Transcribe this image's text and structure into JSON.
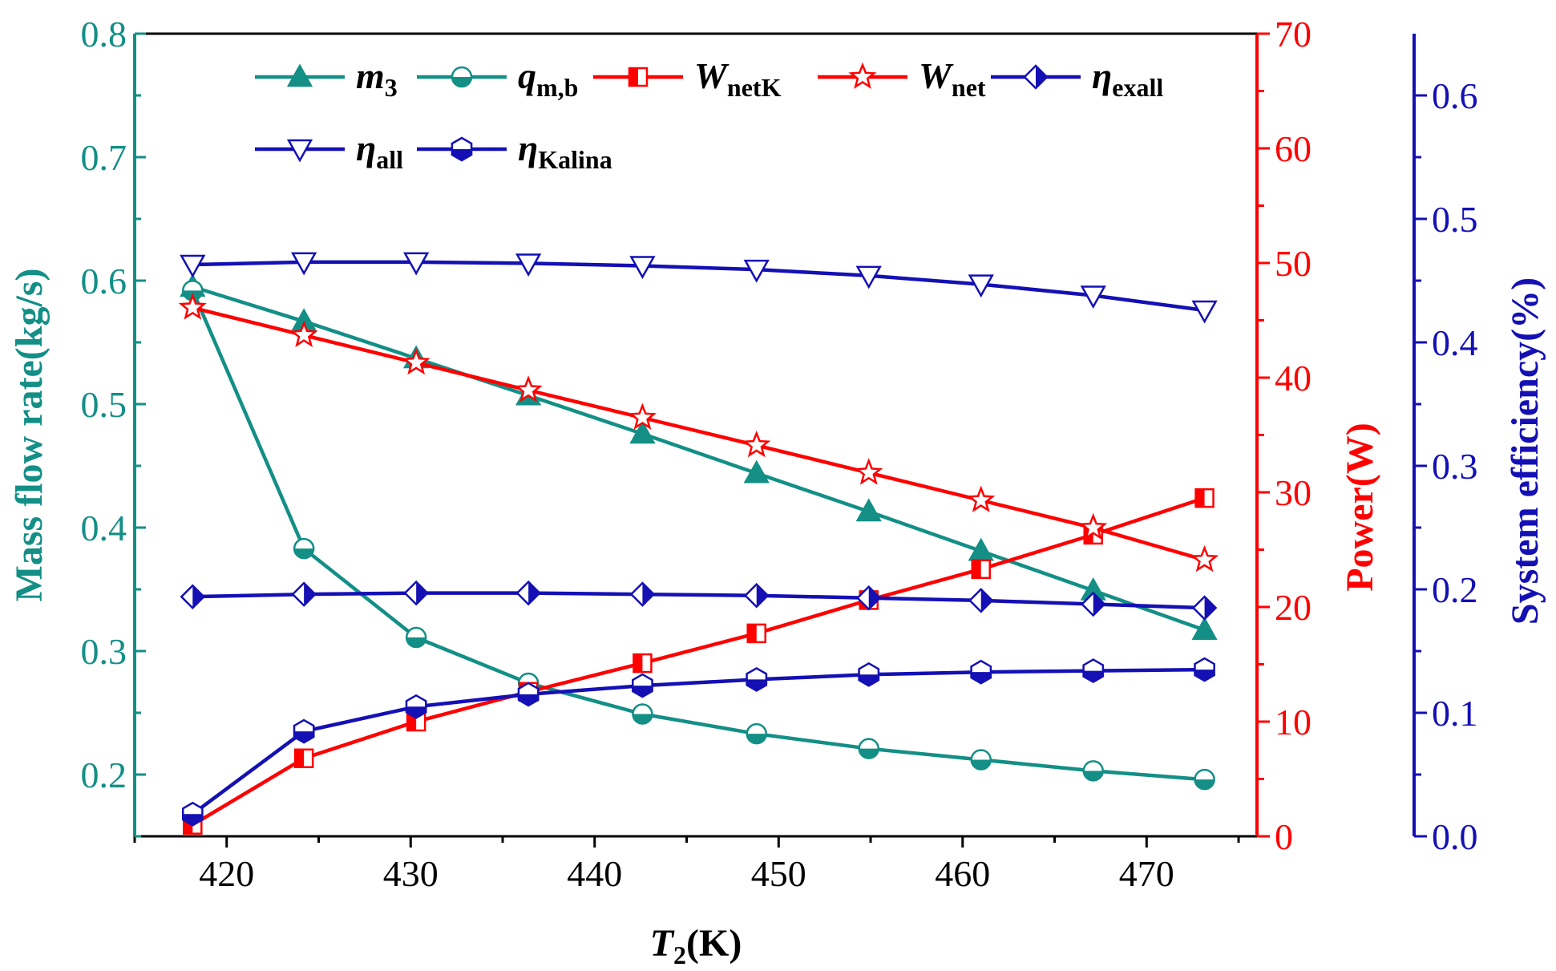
{
  "colors": {
    "teal": "#138f86",
    "red": "#ff0000",
    "blue": "#1410b4"
  },
  "chart_data": {
    "type": "line",
    "x": [
      418.15,
      424.2,
      430.3,
      436.4,
      442.6,
      448.8,
      454.9,
      461.0,
      467.1,
      473.15
    ],
    "xlabel": {
      "main": "T",
      "sub": "2",
      "unit": "(K)"
    },
    "xlim": [
      415,
      476
    ],
    "xticks": [
      420,
      430,
      440,
      450,
      460,
      470
    ],
    "axes": {
      "left": {
        "label": "Mass flow rate(kg/s)",
        "lim": [
          0.15,
          0.8
        ],
        "ticks": [
          "0.2",
          "0.3",
          "0.4",
          "0.5",
          "0.6",
          "0.7",
          "0.8"
        ],
        "color": "#138f86"
      },
      "right1": {
        "label": "Power(W)",
        "lim": [
          0,
          70
        ],
        "ticks": [
          "0",
          "10",
          "20",
          "30",
          "40",
          "50",
          "60",
          "70"
        ],
        "color": "#ff0000"
      },
      "right2": {
        "label": "System efficiency(%)",
        "lim": [
          0,
          0.65
        ],
        "ticks": [
          "0.0",
          "0.1",
          "0.2",
          "0.3",
          "0.4",
          "0.5",
          "0.6"
        ],
        "color": "#1410b4"
      }
    },
    "legend_position": "top",
    "series": [
      {
        "name": "m",
        "sub": "3",
        "axis": "left",
        "marker": "triangle-up",
        "color": "#138f86",
        "values": [
          0.595,
          0.567,
          0.537,
          0.507,
          0.476,
          0.444,
          0.413,
          0.381,
          0.349,
          0.317
        ]
      },
      {
        "name": "q",
        "sub": "m,b",
        "axis": "left",
        "marker": "circle-half",
        "color": "#138f86",
        "values": [
          0.592,
          0.383,
          0.311,
          0.274,
          0.249,
          0.233,
          0.221,
          0.212,
          0.203,
          0.196
        ]
      },
      {
        "name": "W",
        "sub": "netK",
        "axis": "right1",
        "marker": "square-half",
        "color": "#ff0000",
        "values": [
          1.0,
          6.8,
          10.0,
          12.6,
          15.1,
          17.7,
          20.6,
          23.3,
          26.3,
          29.5
        ]
      },
      {
        "name": "W",
        "sub": "net",
        "axis": "right1",
        "marker": "star",
        "color": "#ff0000",
        "values": [
          46.1,
          43.7,
          41.3,
          38.9,
          36.5,
          34.1,
          31.7,
          29.3,
          26.9,
          24.1
        ]
      },
      {
        "name": "η",
        "sub": "exall",
        "axis": "right2",
        "marker": "diamond-half",
        "color": "#1410b4",
        "values": [
          0.194,
          0.196,
          0.197,
          0.197,
          0.196,
          0.195,
          0.193,
          0.191,
          0.188,
          0.185
        ]
      },
      {
        "name": "η",
        "sub": "all",
        "axis": "right2",
        "marker": "triangle-down",
        "color": "#1410b4",
        "values": [
          0.463,
          0.465,
          0.465,
          0.464,
          0.462,
          0.459,
          0.454,
          0.447,
          0.438,
          0.426
        ]
      },
      {
        "name": "η",
        "sub": "Kalina",
        "axis": "right2",
        "marker": "hexagon-half",
        "color": "#1410b4",
        "values": [
          0.018,
          0.085,
          0.105,
          0.115,
          0.122,
          0.127,
          0.131,
          0.133,
          0.134,
          0.135
        ]
      }
    ]
  }
}
